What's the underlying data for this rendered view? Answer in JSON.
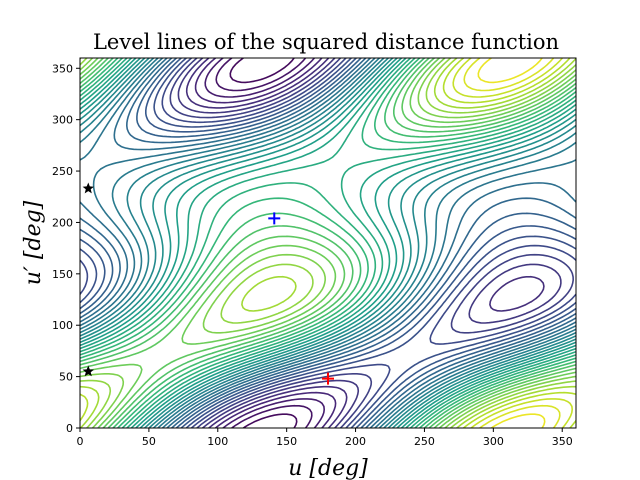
{
  "chart_data": {
    "type": "contour",
    "title": "Level lines of the squared distance function",
    "xlabel": "u [deg]",
    "ylabel": "u′ [deg]",
    "xlim": [
      0,
      360
    ],
    "ylim": [
      0,
      360
    ],
    "xticks": [
      0,
      50,
      100,
      150,
      200,
      250,
      300,
      350
    ],
    "yticks": [
      0,
      50,
      100,
      150,
      200,
      250,
      300,
      350
    ],
    "colormap": "viridis",
    "grid": false,
    "markers": [
      {
        "name": "plus-blue",
        "shape": "plus",
        "x": 141,
        "y": 204,
        "color": "#0000ff"
      },
      {
        "name": "plus-red",
        "shape": "plus",
        "x": 180,
        "y": 48,
        "color": "#ff0000"
      },
      {
        "name": "star-upper",
        "shape": "star",
        "x": 6,
        "y": 233,
        "color": "#000000"
      },
      {
        "name": "star-lower",
        "shape": "star",
        "x": 6,
        "y": 55,
        "color": "#000000"
      }
    ]
  }
}
